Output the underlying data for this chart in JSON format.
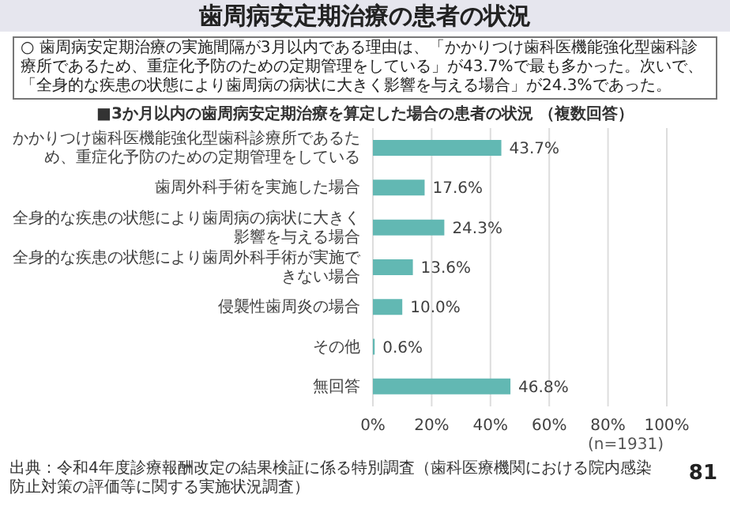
{
  "chart_data": {
    "type": "bar",
    "orientation": "horizontal",
    "title": "歯周病安定期治療の患者の状況",
    "subtitle": "■3か月以内の歯周病安定期治療を算定した場合の患者の状況 （複数回答）",
    "categories": [
      "かかりつけ歯科医機能強化型歯科診療所であるため、重症化予防のための定期管理をしている",
      "歯周外科手術を実施した場合",
      "全身的な疾患の状態により歯周病の病状に大きく影響を与える場合",
      "全身的な疾患の状態により歯周外科手術が実施できない場合",
      "侵襲性歯周炎の場合",
      "その他",
      "無回答"
    ],
    "values": [
      43.7,
      17.6,
      24.3,
      13.6,
      10.0,
      0.6,
      46.8
    ],
    "value_labels": [
      "43.7%",
      "17.6%",
      "24.3%",
      "13.6%",
      "10.0%",
      "0.6%",
      "46.8%"
    ],
    "color": "#62b8b3",
    "xlim": [
      0,
      100
    ],
    "xticks": [
      {
        "value": 0,
        "label": "0%"
      },
      {
        "value": 20,
        "label": "20%"
      },
      {
        "value": 40,
        "label": "40%"
      },
      {
        "value": 60,
        "label": "60%"
      },
      {
        "value": 80,
        "label": "80%"
      },
      {
        "value": 100,
        "label": "100%"
      }
    ],
    "grid": "x",
    "legend": false,
    "annotations": [
      "○ 歯周病安定期治療の実施間隔が3月以内である理由は、「かかりつけ歯科医機能強化型歯科診療所であるため、重症化予防のための定期管理をしている」が43.7%で最も多かった。次いで、「全身的な疾患の状態により歯周病の病状に大きく影響を与える場合」が24.3%であった。",
      "(n=1931)",
      "出典：令和4年度診療報酬改定の結果検証に係る特別調査（歯科医療機関における院内感染防止対策の評価等に関する実施状況調査）",
      "81"
    ]
  }
}
